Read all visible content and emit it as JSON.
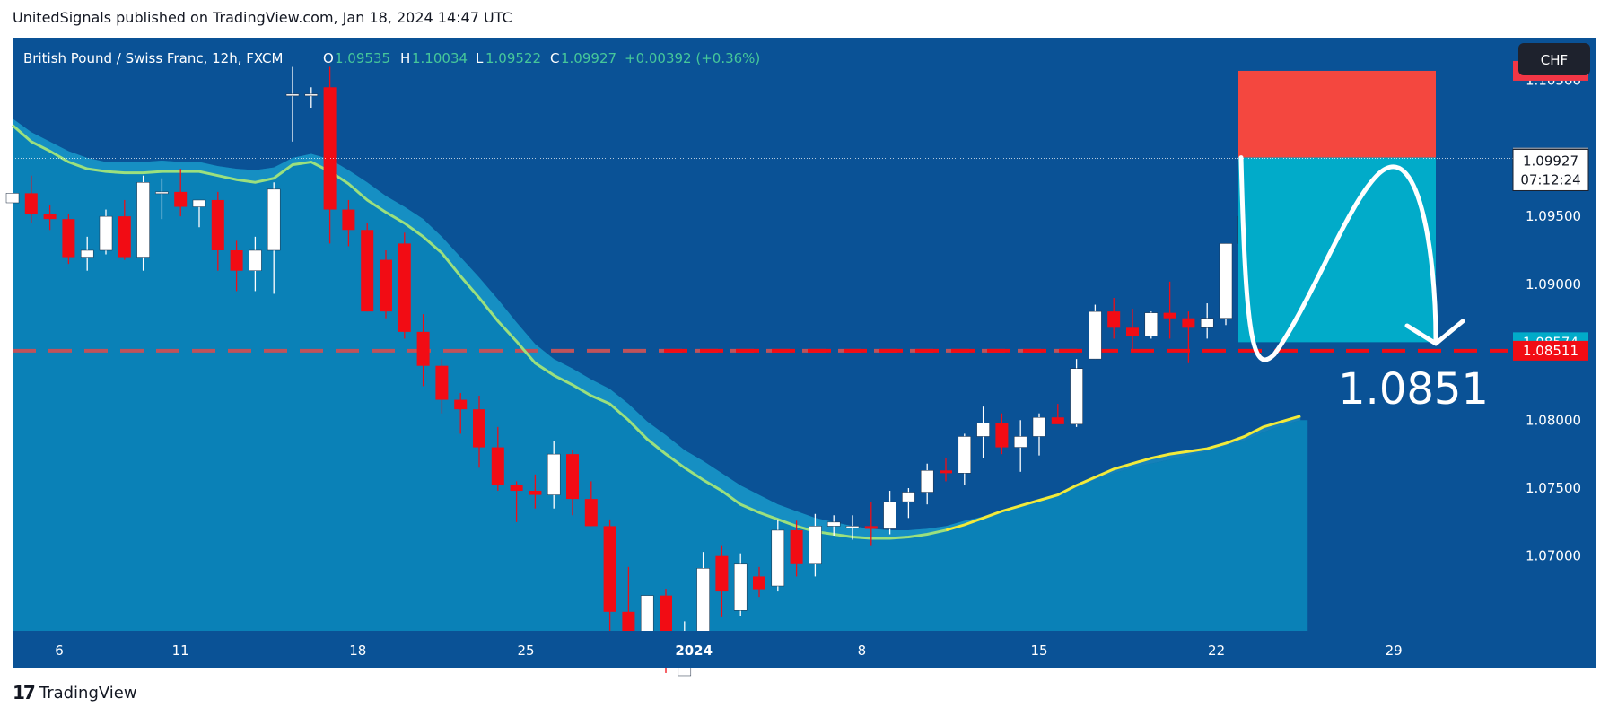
{
  "header": {
    "published": "UnitedSignals published on TradingView.com, Jan 18, 2024 14:47 UTC"
  },
  "footer": {
    "brand": "TradingView",
    "logo_glyph": "17"
  },
  "legend": {
    "symbol": "British Pound / Swiss Franc, 12h, FXCM",
    "o_label": "O",
    "o_value": "1.09535",
    "h_label": "H",
    "h_value": "1.10034",
    "l_label": "L",
    "l_value": "1.09522",
    "c_label": "C",
    "c_value": "1.09927",
    "change": "+0.00392 (+0.36%)"
  },
  "currency_button": "CHF",
  "price_labels": {
    "top_red": "1.10571",
    "gray": "1.09933",
    "last": "1.09927",
    "countdown": "07:12:24",
    "cyan": "1.08574",
    "support": "1.08511"
  },
  "annotation": {
    "target_text": "1.0851"
  },
  "colors": {
    "background": "#0a5296",
    "area": "#0b84b8",
    "band": "#1b95c8",
    "ema": "#9be07e",
    "ema_recent": "#f2ea3a",
    "up_candle": "#ffffff",
    "down_candle": "#f20c14",
    "stop_zone": "#f4473f",
    "target_zone": "#01abc9",
    "support_line": "#f20c14"
  },
  "chart_data": {
    "type": "candlestick",
    "title": "British Pound / Swiss Franc, 12h, FXCM",
    "ylim": [
      1.0645,
      1.10815
    ],
    "y_ticks": [
      "1.10500",
      "1.09500",
      "1.09000",
      "1.08000",
      "1.07500",
      "1.07000"
    ],
    "x_ticks": [
      "6",
      "11",
      "18",
      "25",
      "2024",
      "8",
      "15",
      "22",
      "29"
    ],
    "x_tick_positions": [
      2.5,
      9,
      18.5,
      27.5,
      36.5,
      45.5,
      55,
      64.5,
      74
    ],
    "candles": [
      [
        1.096,
        1.098,
        1.095,
        1.0967
      ],
      [
        1.0967,
        1.098,
        1.0945,
        1.0952
      ],
      [
        1.0952,
        1.0958,
        1.094,
        1.0948
      ],
      [
        1.0948,
        1.0952,
        1.0915,
        1.092
      ],
      [
        1.092,
        1.0935,
        1.091,
        1.0925
      ],
      [
        1.0925,
        1.0955,
        1.0922,
        1.095
      ],
      [
        1.095,
        1.0962,
        1.0918,
        1.092
      ],
      [
        1.092,
        1.098,
        1.091,
        1.0975
      ],
      [
        1.0968,
        1.0978,
        1.0948,
        1.0968
      ],
      [
        1.0968,
        1.0985,
        1.095,
        1.0957
      ],
      [
        1.0957,
        1.0962,
        1.0942,
        1.0962
      ],
      [
        1.0962,
        1.0968,
        1.091,
        1.0925
      ],
      [
        1.0925,
        1.0932,
        1.0895,
        1.091
      ],
      [
        1.091,
        1.0935,
        1.0895,
        1.0925
      ],
      [
        1.0925,
        1.0975,
        1.0893,
        1.097
      ],
      [
        1.104,
        1.106,
        1.1005,
        1.104
      ],
      [
        1.104,
        1.1045,
        1.103,
        1.104
      ],
      [
        1.1045,
        1.106,
        1.093,
        1.0955
      ],
      [
        1.0955,
        1.0962,
        1.0928,
        1.094
      ],
      [
        1.094,
        1.0945,
        1.088,
        1.088
      ],
      [
        1.0918,
        1.0925,
        1.0875,
        1.088
      ],
      [
        1.093,
        1.0938,
        1.086,
        1.0865
      ],
      [
        1.0865,
        1.0878,
        1.0825,
        1.084
      ],
      [
        1.084,
        1.0845,
        1.0805,
        1.0815
      ],
      [
        1.0815,
        1.082,
        1.079,
        1.0808
      ],
      [
        1.0808,
        1.0818,
        1.0765,
        1.078
      ],
      [
        1.078,
        1.0795,
        1.0748,
        1.0752
      ],
      [
        1.0752,
        1.0755,
        1.0725,
        1.0748
      ],
      [
        1.0748,
        1.076,
        1.0735,
        1.0745
      ],
      [
        1.0745,
        1.0785,
        1.0735,
        1.0775
      ],
      [
        1.0775,
        1.0778,
        1.073,
        1.0742
      ],
      [
        1.0742,
        1.0755,
        1.0722,
        1.0722
      ],
      [
        1.0722,
        1.0727,
        1.0628,
        1.0659
      ],
      [
        1.0659,
        1.0692,
        1.063,
        1.0635
      ],
      [
        1.0635,
        1.0671,
        1.0595,
        1.0671
      ],
      [
        1.0671,
        1.0676,
        1.0614,
        1.0625
      ],
      [
        1.0612,
        1.0652,
        1.0603,
        1.0642
      ],
      [
        1.0642,
        1.0703,
        1.0628,
        1.0691
      ],
      [
        1.07,
        1.0708,
        1.0655,
        1.0674
      ],
      [
        1.066,
        1.0702,
        1.0656,
        1.0694
      ],
      [
        1.0685,
        1.0692,
        1.067,
        1.0675
      ],
      [
        1.0678,
        1.0727,
        1.0674,
        1.0719
      ],
      [
        1.0719,
        1.0726,
        1.0685,
        1.0694
      ],
      [
        1.0694,
        1.0731,
        1.0685,
        1.0722
      ],
      [
        1.0722,
        1.073,
        1.0715,
        1.0725
      ],
      [
        1.0722,
        1.073,
        1.0712,
        1.0722
      ],
      [
        1.0722,
        1.074,
        1.0708,
        1.072
      ],
      [
        1.072,
        1.0748,
        1.0716,
        1.074
      ],
      [
        1.074,
        1.075,
        1.0728,
        1.0747
      ],
      [
        1.0747,
        1.0768,
        1.0738,
        1.0763
      ],
      [
        1.0763,
        1.0772,
        1.0755,
        1.0761
      ],
      [
        1.0761,
        1.079,
        1.0752,
        1.0788
      ],
      [
        1.0788,
        1.081,
        1.0772,
        1.0798
      ],
      [
        1.0798,
        1.0805,
        1.0775,
        1.078
      ],
      [
        1.078,
        1.08,
        1.0762,
        1.0788
      ],
      [
        1.0788,
        1.0805,
        1.0774,
        1.0802
      ],
      [
        1.0802,
        1.0812,
        1.0798,
        1.0797
      ],
      [
        1.0797,
        1.0845,
        1.0795,
        1.0838
      ],
      [
        1.0845,
        1.0885,
        1.0845,
        1.088
      ],
      [
        1.088,
        1.089,
        1.086,
        1.0868
      ],
      [
        1.0868,
        1.0882,
        1.085,
        1.0862
      ],
      [
        1.0862,
        1.088,
        1.086,
        1.0879
      ],
      [
        1.0879,
        1.0902,
        1.086,
        1.0875
      ],
      [
        1.0875,
        1.088,
        1.0842,
        1.0868
      ],
      [
        1.0868,
        1.0886,
        1.086,
        1.0875
      ],
      [
        1.0875,
        1.093,
        1.087,
        1.093
      ],
      [
        1.093,
        1.0955,
        1.0925,
        1.095
      ],
      [
        1.095,
        1.098,
        1.0935,
        1.0953
      ],
      [
        1.0953,
        1.0975,
        1.0948,
        1.0955
      ],
      [
        1.0955,
        1.1003,
        1.0952,
        1.0993
      ]
    ],
    "ema_line": [
      1.1017,
      1.1005,
      1.0998,
      1.099,
      1.0985,
      1.0983,
      1.0982,
      1.0982,
      1.0983,
      1.0983,
      1.0983,
      1.098,
      1.0977,
      1.0975,
      1.0978,
      1.0988,
      1.099,
      1.0983,
      1.0974,
      1.0962,
      1.0953,
      1.0945,
      1.0935,
      1.0923,
      1.0906,
      1.089,
      1.0873,
      1.0858,
      1.0842,
      1.0833,
      1.0826,
      1.0818,
      1.0812,
      1.08,
      1.0786,
      1.0775,
      1.0765,
      1.0756,
      1.0748,
      1.0738,
      1.0732,
      1.0727,
      1.0722,
      1.0718,
      1.0716,
      1.0714,
      1.0713,
      1.0713,
      1.0714,
      1.0716,
      1.0719,
      1.0723,
      1.0728,
      1.0733,
      1.0737,
      1.0741,
      1.0745,
      1.0752,
      1.0758,
      1.0764,
      1.0768,
      1.0772,
      1.0775,
      1.0777,
      1.0779,
      1.0783,
      1.0788,
      1.0795,
      1.0799,
      1.0803
    ],
    "area_line": [
      1.1022,
      1.1012,
      1.1005,
      1.0998,
      1.0993,
      1.099,
      1.099,
      1.099,
      1.0991,
      1.099,
      1.099,
      1.0987,
      1.0985,
      1.0984,
      1.0986,
      1.0993,
      1.0996,
      1.0992,
      1.0984,
      1.0975,
      1.0965,
      1.0957,
      1.0948,
      1.0935,
      1.092,
      1.0905,
      1.0889,
      1.0872,
      1.0856,
      1.0845,
      1.0838,
      1.083,
      1.0823,
      1.0812,
      1.0799,
      1.0789,
      1.0778,
      1.077,
      1.0761,
      1.0752,
      1.0745,
      1.0738,
      1.0733,
      1.0728,
      1.0725,
      1.0722,
      1.072,
      1.0719,
      1.0719,
      1.072,
      1.0722,
      1.0726,
      1.0729,
      1.0733,
      1.0737,
      1.0741,
      1.0745,
      1.075,
      1.0756,
      1.0761,
      1.0765,
      1.0768,
      1.0771,
      1.0774,
      1.0777,
      1.0781,
      1.0785,
      1.0791,
      1.0796,
      1.08
    ],
    "support_level": 1.08511,
    "last_price": 1.09927,
    "position": {
      "entry": 1.09933,
      "stop": 1.10571,
      "target": 1.08574
    }
  }
}
